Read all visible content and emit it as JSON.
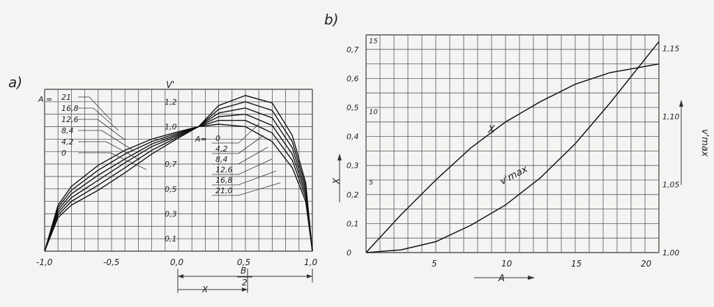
{
  "chart_data": [
    {
      "panel_label": "a)",
      "type": "line",
      "xlim": [
        -1.0,
        1.0
      ],
      "ylim": [
        0,
        1.3
      ],
      "grid": true,
      "x_ticks": [
        "-1,0",
        "-0,5",
        "0,0",
        "0,5",
        "1,0"
      ],
      "y_ticks": [
        "0,1",
        "0,3",
        "0,5",
        "0,7",
        "1,0",
        "1,2"
      ],
      "ylabel": "V'",
      "legend_left_title": "A =",
      "legend_left": [
        "21",
        "16,8",
        "12,6",
        "8,4",
        "4,2",
        "0"
      ],
      "legend_right_title": "A=",
      "legend_right": [
        "0",
        "4,2",
        "8,4",
        "12,6",
        "16,8",
        "21,0"
      ],
      "dimension_labels": {
        "offset": "X",
        "half_width_num": "B",
        "half_width_den": "2"
      },
      "series": [
        {
          "name": "0",
          "x": [
            -1.0,
            -0.9,
            -0.8,
            -0.6,
            -0.4,
            -0.2,
            0.0,
            0.15,
            0.3,
            0.5,
            0.7,
            0.85,
            0.95,
            1.0
          ],
          "y": [
            0,
            0.37,
            0.52,
            0.69,
            0.81,
            0.9,
            0.96,
            1.0,
            1.02,
            1.0,
            0.88,
            0.67,
            0.4,
            0
          ]
        },
        {
          "name": "4,2",
          "x": [
            -1.0,
            -0.9,
            -0.8,
            -0.6,
            -0.4,
            -0.2,
            0.0,
            0.15,
            0.3,
            0.5,
            0.7,
            0.85,
            0.95,
            1.0
          ],
          "y": [
            0,
            0.35,
            0.49,
            0.65,
            0.78,
            0.88,
            0.95,
            1.0,
            1.05,
            1.05,
            0.95,
            0.73,
            0.43,
            0
          ]
        },
        {
          "name": "8,4",
          "x": [
            -1.0,
            -0.9,
            -0.8,
            -0.6,
            -0.4,
            -0.2,
            0.0,
            0.15,
            0.3,
            0.5,
            0.7,
            0.85,
            0.95,
            1.0
          ],
          "y": [
            0,
            0.33,
            0.46,
            0.61,
            0.74,
            0.86,
            0.94,
            1.0,
            1.08,
            1.1,
            1.01,
            0.78,
            0.46,
            0
          ]
        },
        {
          "name": "12,6",
          "x": [
            -1.0,
            -0.9,
            -0.8,
            -0.6,
            -0.4,
            -0.2,
            0.0,
            0.15,
            0.3,
            0.5,
            0.7,
            0.85,
            0.95,
            1.0
          ],
          "y": [
            0,
            0.31,
            0.43,
            0.57,
            0.71,
            0.84,
            0.93,
            1.0,
            1.11,
            1.15,
            1.07,
            0.83,
            0.49,
            0
          ]
        },
        {
          "name": "16,8",
          "x": [
            -1.0,
            -0.9,
            -0.8,
            -0.6,
            -0.4,
            -0.2,
            0.0,
            0.15,
            0.3,
            0.5,
            0.7,
            0.85,
            0.95,
            1.0
          ],
          "y": [
            0,
            0.29,
            0.4,
            0.53,
            0.67,
            0.81,
            0.92,
            1.0,
            1.14,
            1.2,
            1.13,
            0.88,
            0.52,
            0
          ]
        },
        {
          "name": "21,0",
          "x": [
            -1.0,
            -0.9,
            -0.8,
            -0.6,
            -0.4,
            -0.2,
            0.0,
            0.15,
            0.3,
            0.5,
            0.7,
            0.85,
            0.95,
            1.0
          ],
          "y": [
            0,
            0.27,
            0.37,
            0.49,
            0.63,
            0.78,
            0.91,
            1.0,
            1.17,
            1.25,
            1.19,
            0.93,
            0.55,
            0
          ]
        }
      ]
    },
    {
      "panel_label": "b)",
      "type": "line",
      "xlim": [
        0,
        21
      ],
      "x_ticks": [
        "5",
        "10",
        "15",
        "20"
      ],
      "xlabel": "A",
      "grid": true,
      "y_left_label": "X",
      "y_left_ticks": [
        "0",
        "0,1",
        "0,2",
        "0,3",
        "0,4",
        "0,5",
        "0,6",
        "0,7"
      ],
      "y_left_lim": [
        0,
        0.75
      ],
      "y_inner_ticks": [
        "5",
        "10",
        "15"
      ],
      "y_right_label": "v'max",
      "y_right_ticks": [
        "1,00",
        "1,05",
        "1,10",
        "1,15"
      ],
      "y_right_lim": [
        1.0,
        1.16
      ],
      "series": [
        {
          "name": "X",
          "axis": "left",
          "x": [
            0,
            2.5,
            5,
            7.5,
            10,
            12.5,
            15,
            17.5,
            21
          ],
          "y": [
            0,
            0.13,
            0.25,
            0.36,
            0.45,
            0.52,
            0.58,
            0.62,
            0.65
          ]
        },
        {
          "name": "v'max",
          "axis": "right",
          "x": [
            0,
            2.5,
            5,
            7.5,
            10,
            12.5,
            15,
            17.5,
            21
          ],
          "y": [
            1.0,
            1.002,
            1.008,
            1.02,
            1.035,
            1.055,
            1.08,
            1.11,
            1.155
          ]
        }
      ]
    }
  ]
}
